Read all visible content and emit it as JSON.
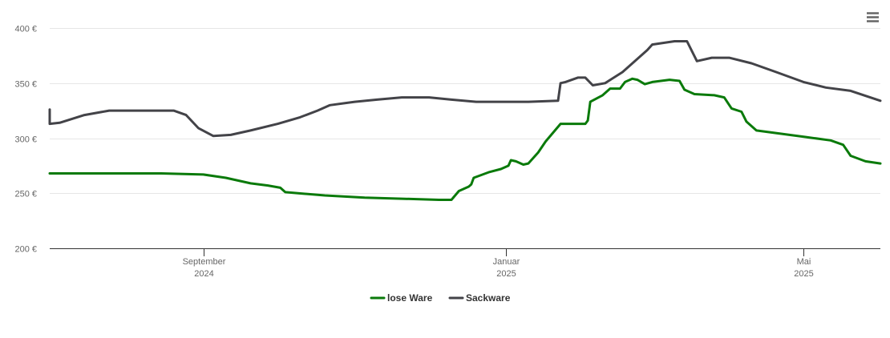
{
  "chart_data": {
    "type": "line",
    "y_ticks": [
      "200 €",
      "250 €",
      "300 €",
      "350 €",
      "400 €"
    ],
    "ylim": [
      200,
      400
    ],
    "x_ticks": [
      {
        "date": "2024-09-01",
        "line1": "September",
        "line2": "2024"
      },
      {
        "date": "2025-01-01",
        "line1": "Januar",
        "line2": "2025"
      },
      {
        "date": "2025-05-01",
        "line1": "Mai",
        "line2": "2025"
      }
    ],
    "xlim": [
      "2024-07-01",
      "2025-06-01"
    ],
    "grid": true,
    "legend_position": "bottom-center",
    "menu_icon": "hamburger-menu-icon",
    "series": [
      {
        "name": "lose Ware",
        "color": "#0a7a0a",
        "points": [
          [
            "2024-07-01",
            268
          ],
          [
            "2024-08-15",
            268
          ],
          [
            "2024-09-01",
            267
          ],
          [
            "2024-09-10",
            264
          ],
          [
            "2024-09-20",
            259
          ],
          [
            "2024-09-27",
            257
          ],
          [
            "2024-10-02",
            255
          ],
          [
            "2024-10-04",
            251
          ],
          [
            "2024-10-20",
            248
          ],
          [
            "2024-11-05",
            246
          ],
          [
            "2024-11-20",
            245
          ],
          [
            "2024-12-05",
            244
          ],
          [
            "2024-12-10",
            244
          ],
          [
            "2024-12-13",
            252
          ],
          [
            "2024-12-17",
            256
          ],
          [
            "2024-12-18",
            258
          ],
          [
            "2024-12-19",
            264
          ],
          [
            "2024-12-25",
            269
          ],
          [
            "2024-12-30",
            272
          ],
          [
            "2025-01-02",
            275
          ],
          [
            "2025-01-03",
            280
          ],
          [
            "2025-01-05",
            279
          ],
          [
            "2025-01-08",
            276
          ],
          [
            "2025-01-10",
            277
          ],
          [
            "2025-01-14",
            287
          ],
          [
            "2025-01-17",
            297
          ],
          [
            "2025-01-23",
            313
          ],
          [
            "2025-02-02",
            313
          ],
          [
            "2025-02-03",
            316
          ],
          [
            "2025-02-04",
            333
          ],
          [
            "2025-02-09",
            339
          ],
          [
            "2025-02-12",
            345
          ],
          [
            "2025-02-16",
            345
          ],
          [
            "2025-02-18",
            351
          ],
          [
            "2025-02-21",
            354
          ],
          [
            "2025-02-23",
            353
          ],
          [
            "2025-02-26",
            349
          ],
          [
            "2025-03-01",
            351
          ],
          [
            "2025-03-08",
            353
          ],
          [
            "2025-03-12",
            352
          ],
          [
            "2025-03-14",
            344
          ],
          [
            "2025-03-18",
            340
          ],
          [
            "2025-03-26",
            339
          ],
          [
            "2025-03-30",
            337
          ],
          [
            "2025-04-02",
            327
          ],
          [
            "2025-04-06",
            324
          ],
          [
            "2025-04-08",
            315
          ],
          [
            "2025-04-12",
            307
          ],
          [
            "2025-04-22",
            304
          ],
          [
            "2025-05-02",
            301
          ],
          [
            "2025-05-12",
            298
          ],
          [
            "2025-05-17",
            294
          ],
          [
            "2025-05-20",
            284
          ],
          [
            "2025-05-26",
            279
          ],
          [
            "2025-06-01",
            277
          ]
        ]
      },
      {
        "name": "Sackware",
        "color": "#434348",
        "points": [
          [
            "2024-07-01",
            326
          ],
          [
            "2024-07-01",
            313
          ],
          [
            "2024-07-05",
            314
          ],
          [
            "2024-07-15",
            321
          ],
          [
            "2024-07-25",
            325
          ],
          [
            "2024-08-20",
            325
          ],
          [
            "2024-08-25",
            321
          ],
          [
            "2024-08-30",
            309
          ],
          [
            "2024-09-05",
            302
          ],
          [
            "2024-09-12",
            303
          ],
          [
            "2024-09-20",
            307
          ],
          [
            "2024-10-01",
            313
          ],
          [
            "2024-10-10",
            319
          ],
          [
            "2024-10-17",
            325
          ],
          [
            "2024-10-22",
            330
          ],
          [
            "2024-11-01",
            333
          ],
          [
            "2024-11-10",
            335
          ],
          [
            "2024-11-20",
            337
          ],
          [
            "2024-12-01",
            337
          ],
          [
            "2024-12-10",
            335
          ],
          [
            "2024-12-20",
            333
          ],
          [
            "2025-01-10",
            333
          ],
          [
            "2025-01-22",
            334
          ],
          [
            "2025-01-23",
            350
          ],
          [
            "2025-01-25",
            351
          ],
          [
            "2025-01-30",
            355
          ],
          [
            "2025-02-02",
            355
          ],
          [
            "2025-02-05",
            348
          ],
          [
            "2025-02-10",
            350
          ],
          [
            "2025-02-17",
            360
          ],
          [
            "2025-02-27",
            380
          ],
          [
            "2025-03-01",
            385
          ],
          [
            "2025-03-10",
            388
          ],
          [
            "2025-03-15",
            388
          ],
          [
            "2025-03-19",
            370
          ],
          [
            "2025-03-25",
            373
          ],
          [
            "2025-04-01",
            373
          ],
          [
            "2025-04-10",
            368
          ],
          [
            "2025-04-20",
            360
          ],
          [
            "2025-05-01",
            351
          ],
          [
            "2025-05-10",
            346
          ],
          [
            "2025-05-20",
            343
          ],
          [
            "2025-06-01",
            334
          ]
        ]
      }
    ]
  }
}
